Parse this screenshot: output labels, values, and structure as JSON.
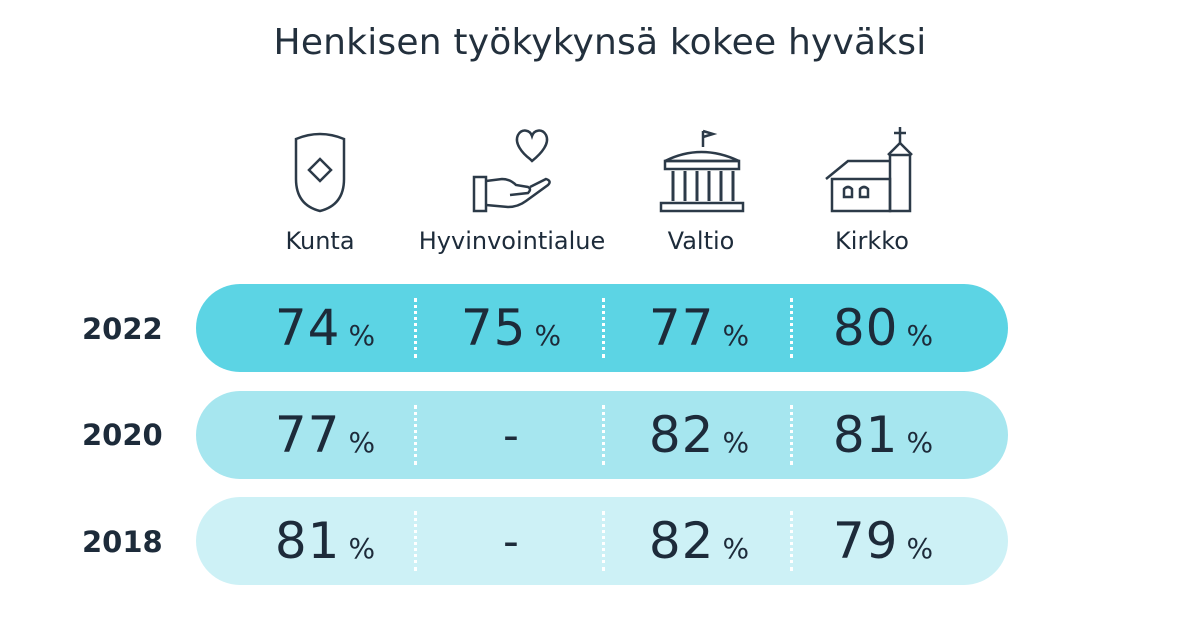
{
  "chart_data": {
    "type": "table",
    "title": "Henkisen työkykynsä kokee hyväksi",
    "columns": [
      "Kunta",
      "Hyvinvointialue",
      "Valtio",
      "Kirkko"
    ],
    "column_icons": [
      "shield-icon",
      "hand-heart-icon",
      "government-building-icon",
      "church-icon"
    ],
    "unit": "%",
    "rows": [
      {
        "year": "2022",
        "values": [
          "74",
          "75",
          "77",
          "80"
        ],
        "color": "#5cd4e4"
      },
      {
        "year": "2020",
        "values": [
          "77",
          "-",
          "82",
          "81"
        ],
        "color": "#a6e6ef"
      },
      {
        "year": "2018",
        "values": [
          "81",
          "-",
          "82",
          "79"
        ],
        "color": "#cdf1f6"
      }
    ]
  }
}
